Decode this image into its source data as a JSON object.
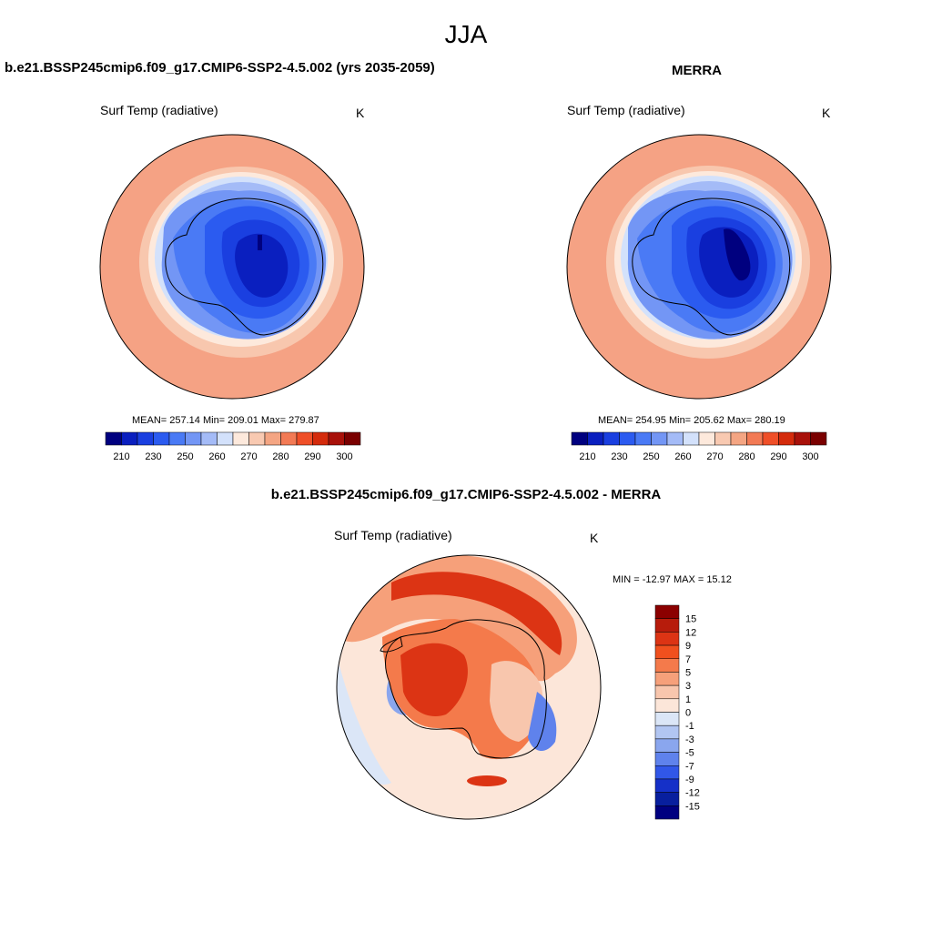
{
  "figure_title": "JJA",
  "panels": [
    {
      "title": "b.e21.BSSP245cmip6.f09_g17.CMIP6-SSP2-4.5.002 (yrs 2035-2059)",
      "left_label": "Surf Temp (radiative)",
      "right_label": "K",
      "stats": "MEAN= 257.14  Min= 209.01  Max= 279.87",
      "colorbar_ticks": [
        "210",
        "230",
        "250",
        "260",
        "270",
        "280",
        "290",
        "300"
      ]
    },
    {
      "title": "MERRA",
      "left_label": "Surf Temp (radiative)",
      "right_label": "K",
      "stats": "MEAN= 254.95  Min= 205.62  Max= 280.19",
      "colorbar_ticks": [
        "210",
        "230",
        "250",
        "260",
        "270",
        "280",
        "290",
        "300"
      ]
    },
    {
      "title": "b.e21.BSSP245cmip6.f09_g17.CMIP6-SSP2-4.5.002 - MERRA",
      "left_label": "Surf Temp (radiative)",
      "right_label": "K",
      "stats": "MIN = -12.97 MAX =  15.12",
      "colorbar_ticks": [
        "15",
        "12",
        "9",
        "7",
        "5",
        "3",
        "1",
        "0",
        "-1",
        "-3",
        "-5",
        "-7",
        "-9",
        "-12",
        "-15"
      ]
    }
  ],
  "colors": {
    "abs_scale": [
      "#00007f",
      "#0a1fbf",
      "#1a3fe0",
      "#2b5bf0",
      "#4a7af5",
      "#7396f5",
      "#a4bbf7",
      "#d3e1fb",
      "#fde9dc",
      "#f8c9b1",
      "#f4a583",
      "#f27a55",
      "#ef4f28",
      "#d42b0c",
      "#a8110a",
      "#7a0000"
    ],
    "diff_scale": [
      "#8b0000",
      "#b71c0c",
      "#dc3414",
      "#f0501e",
      "#f47a4b",
      "#f6a07a",
      "#f8c6ad",
      "#fce6d9",
      "#dbe6f7",
      "#b2c6f2",
      "#8aa6ee",
      "#5f82ec",
      "#3157e8",
      "#1530c8",
      "#081f9e",
      "#000080"
    ]
  },
  "map_data": [
    {
      "variable": "Surf Temp (radiative)",
      "units": "K",
      "projection": "south polar stereographic",
      "contour_levels": [
        205,
        210,
        220,
        230,
        240,
        250,
        255,
        260,
        265,
        270,
        275,
        280,
        285,
        290,
        295,
        300,
        305
      ],
      "mean": 257.14,
      "min": 209.01,
      "max": 279.87
    },
    {
      "variable": "Surf Temp (radiative)",
      "units": "K",
      "projection": "south polar stereographic",
      "contour_levels": [
        205,
        210,
        220,
        230,
        240,
        250,
        255,
        260,
        265,
        270,
        275,
        280,
        285,
        290,
        295,
        300,
        305
      ],
      "mean": 254.95,
      "min": 205.62,
      "max": 280.19
    },
    {
      "variable": "Surf Temp (radiative)",
      "units": "K",
      "projection": "south polar stereographic",
      "contour_levels": [
        -15,
        -12,
        -9,
        -7,
        -5,
        -3,
        -1,
        0,
        1,
        3,
        5,
        7,
        9,
        12,
        15
      ],
      "min": -12.97,
      "max": 15.12
    }
  ]
}
